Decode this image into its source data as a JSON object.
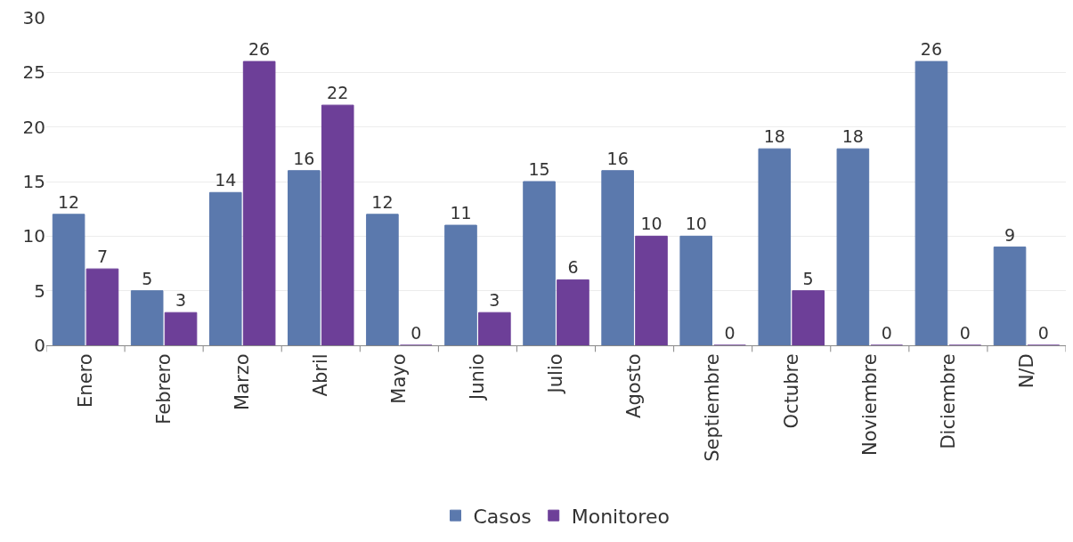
{
  "chart_data": {
    "type": "bar",
    "categories": [
      "Enero",
      "Febrero",
      "Marzo",
      "Abril",
      "Mayo",
      "Junio",
      "Julio",
      "Agosto",
      "Septiembre",
      "Octubre",
      "Noviembre",
      "Diciembre",
      "N/D"
    ],
    "series": [
      {
        "name": "Casos",
        "color": "#5b79ad",
        "values": [
          12,
          5,
          14,
          16,
          12,
          11,
          15,
          16,
          10,
          18,
          18,
          26,
          9
        ]
      },
      {
        "name": "Monitoreo",
        "color": "#6d3f98",
        "values": [
          7,
          3,
          26,
          22,
          0,
          3,
          6,
          10,
          0,
          5,
          0,
          0,
          0
        ]
      }
    ],
    "ylim": [
      0,
      30
    ],
    "yticks": [
      0,
      5,
      10,
      15,
      20,
      25,
      30
    ],
    "grid": "y",
    "legend": "bottom",
    "data_labels": true
  }
}
